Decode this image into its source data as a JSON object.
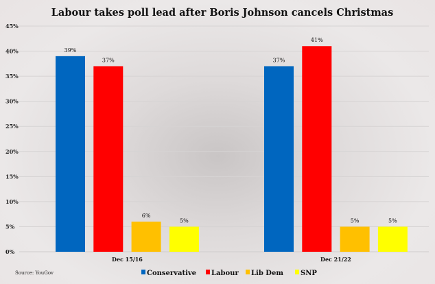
{
  "chart_data": {
    "type": "bar",
    "title": "Labour takes poll lead after Boris Johnson cancels Christmas",
    "categories": [
      "Dec 15/16",
      "Dec 21/22"
    ],
    "series": [
      {
        "name": "Conservative",
        "color": "#0066bf",
        "values": [
          39,
          37
        ]
      },
      {
        "name": "Labour",
        "color": "#ff0000",
        "values": [
          37,
          41
        ]
      },
      {
        "name": "Lib Dem",
        "color": "#ffc000",
        "values": [
          6,
          5
        ]
      },
      {
        "name": "SNP",
        "color": "#ffff00",
        "values": [
          5,
          5
        ]
      }
    ],
    "yticks": [
      "0%",
      "5%",
      "10%",
      "15%",
      "20%",
      "25%",
      "30%",
      "35%",
      "40%",
      "45%"
    ],
    "ylim": [
      0,
      45
    ],
    "xlabel": "",
    "ylabel": "",
    "grid": true,
    "legend": "bottom-center",
    "source": "Source: YouGov"
  }
}
